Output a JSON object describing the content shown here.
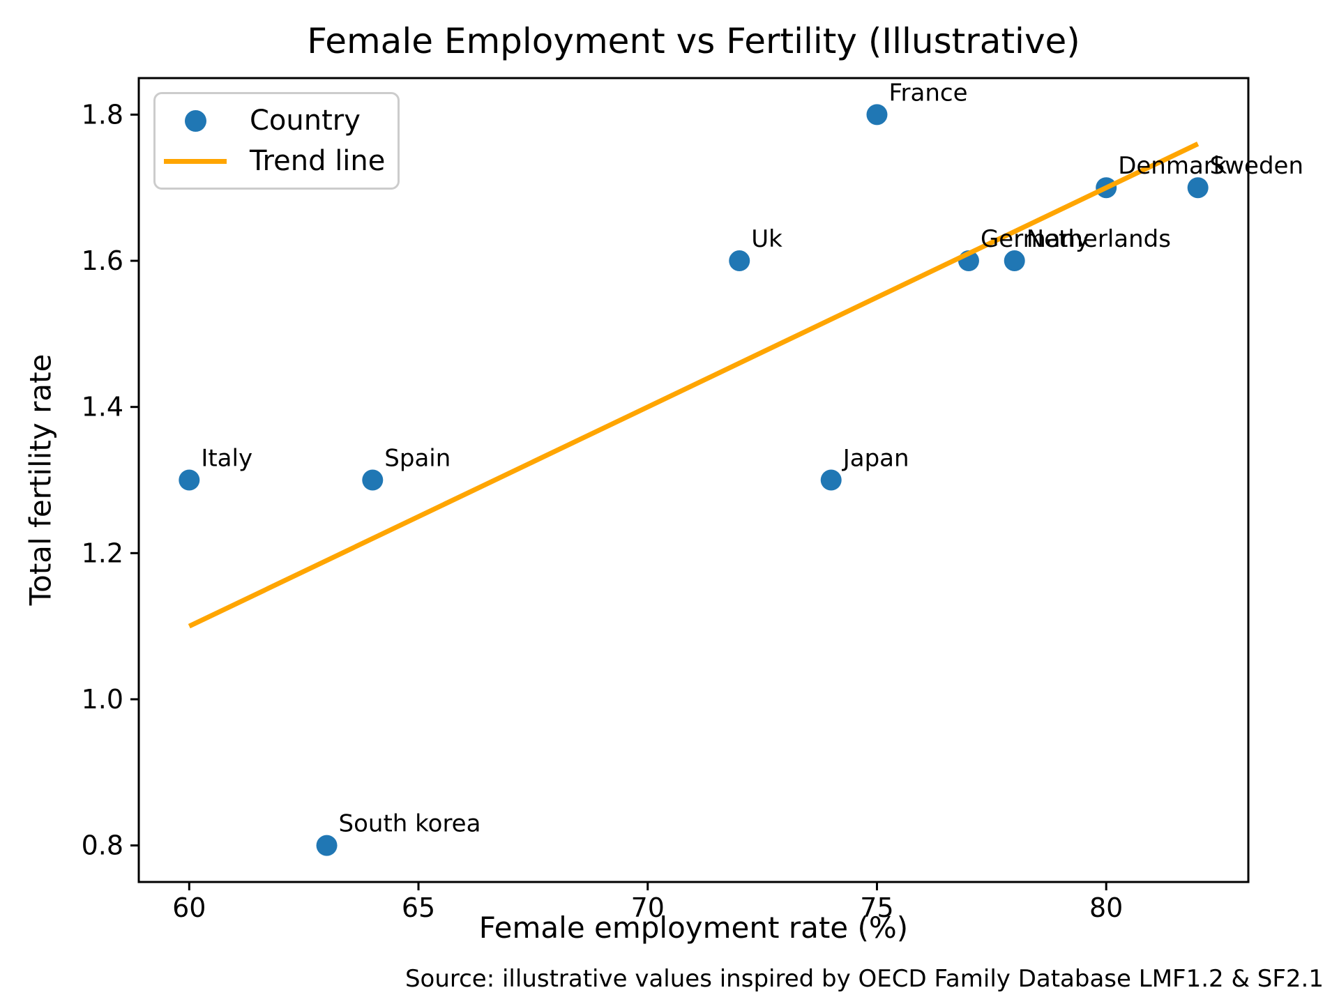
{
  "chart_data": {
    "type": "scatter",
    "title": "Female Employment vs Fertility (Illustrative)",
    "xlabel": "Female employment rate (%)",
    "ylabel": "Total fertility rate",
    "source_note": "Source: illustrative values inspired by OECD Family Database LMF1.2 & SF2.1",
    "xlim": [
      58.9,
      83.1
    ],
    "ylim": [
      0.75,
      1.85
    ],
    "grid": false,
    "legend_position": "upper-left",
    "x_ticks": [
      {
        "value": 60,
        "label": "60"
      },
      {
        "value": 65,
        "label": "65"
      },
      {
        "value": 70,
        "label": "70"
      },
      {
        "value": 75,
        "label": "75"
      },
      {
        "value": 80,
        "label": "80"
      }
    ],
    "y_ticks": [
      {
        "value": 0.8,
        "label": "0.8"
      },
      {
        "value": 1.0,
        "label": "1.0"
      },
      {
        "value": 1.2,
        "label": "1.2"
      },
      {
        "value": 1.4,
        "label": "1.4"
      },
      {
        "value": 1.6,
        "label": "1.6"
      },
      {
        "value": 1.8,
        "label": "1.8"
      }
    ],
    "points": [
      {
        "label": "Italy",
        "x": 60,
        "y": 1.3
      },
      {
        "label": "South korea",
        "x": 63,
        "y": 0.8
      },
      {
        "label": "Spain",
        "x": 64,
        "y": 1.3
      },
      {
        "label": "Uk",
        "x": 72,
        "y": 1.6
      },
      {
        "label": "Japan",
        "x": 74,
        "y": 1.3
      },
      {
        "label": "France",
        "x": 75,
        "y": 1.8
      },
      {
        "label": "Germany",
        "x": 77,
        "y": 1.6
      },
      {
        "label": "Netherlands",
        "x": 78,
        "y": 1.6
      },
      {
        "label": "Denmark",
        "x": 80,
        "y": 1.7
      },
      {
        "label": "Sweden",
        "x": 82,
        "y": 1.7
      }
    ],
    "trend_line": {
      "x_start": 60,
      "y_start": 1.1,
      "x_end": 82,
      "y_end": 1.76
    },
    "legend": [
      {
        "label": "Country",
        "marker": "dot",
        "color": "#2077b4"
      },
      {
        "label": "Trend line",
        "marker": "line",
        "color": "#ffa500"
      }
    ],
    "colors": {
      "point": "#2077b4",
      "trend": "#ffa500",
      "axis": "#000000",
      "text": "#000000",
      "legend_border": "#cccccc"
    }
  }
}
